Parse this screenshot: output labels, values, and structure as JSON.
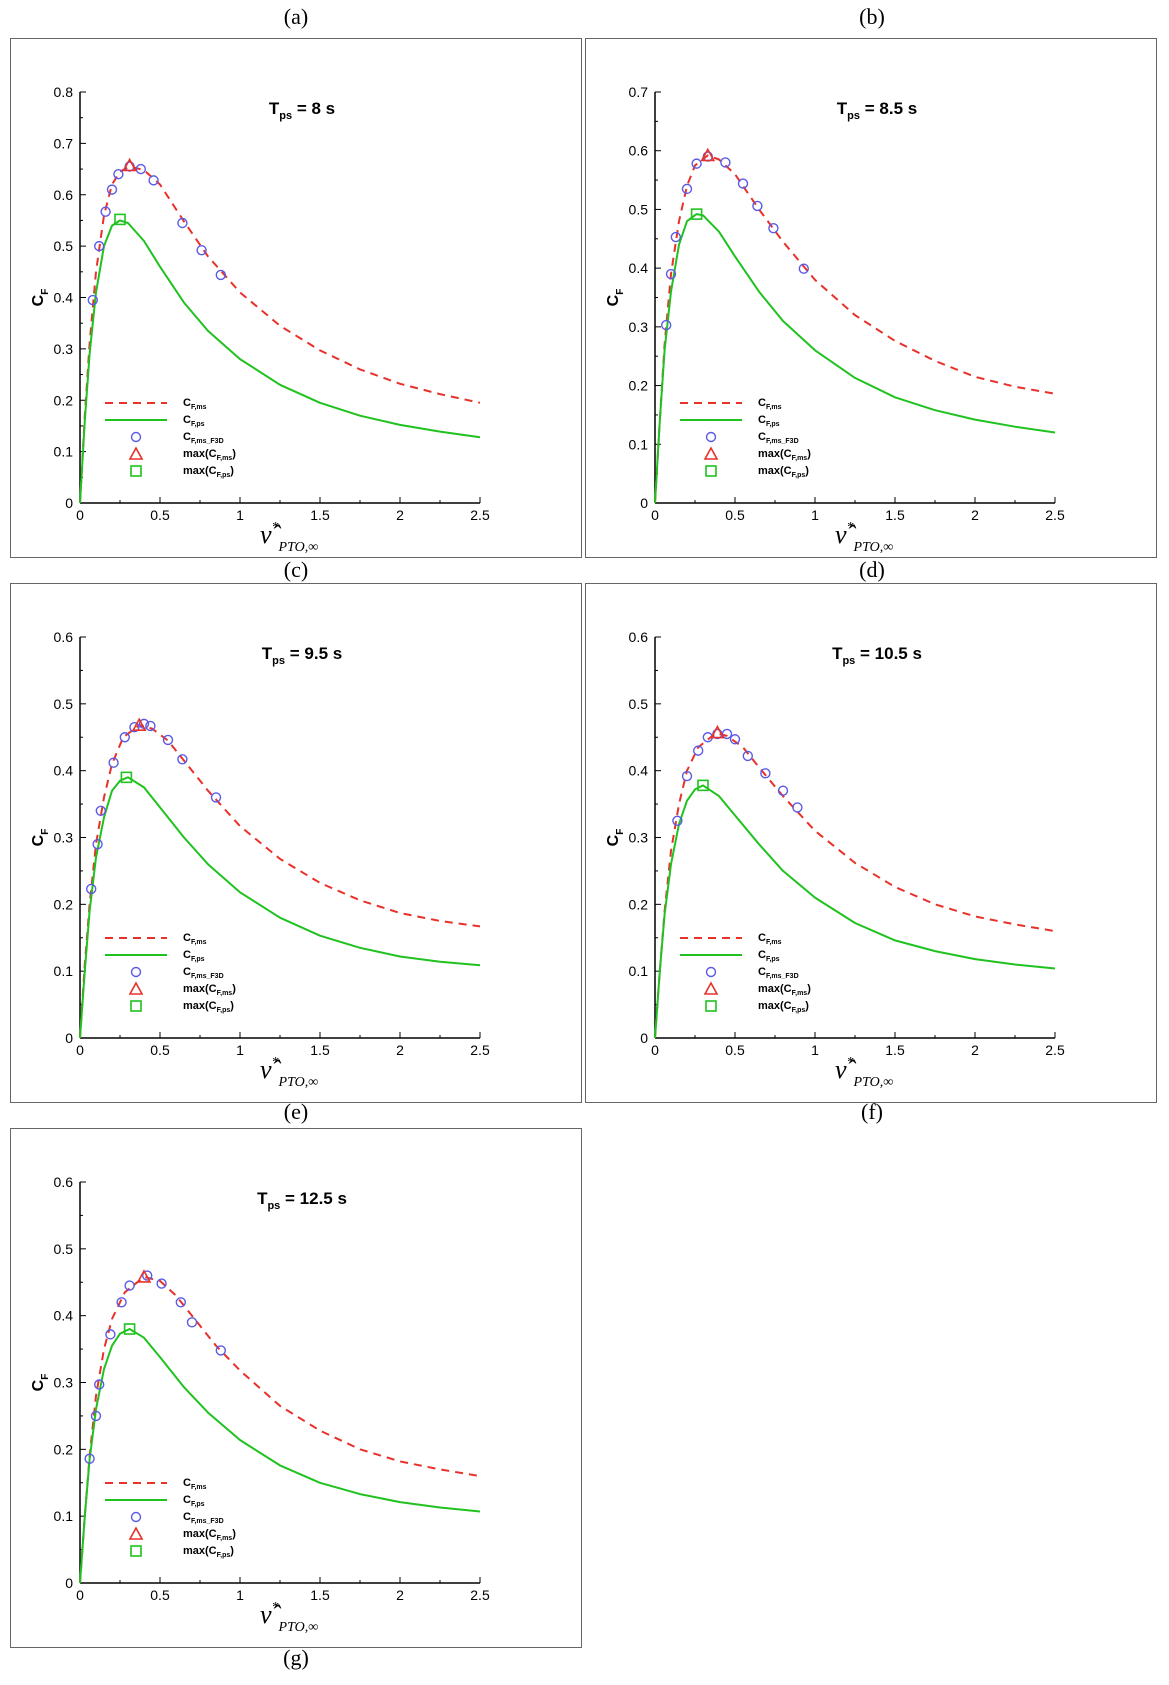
{
  "figure": {
    "panel_labels": [
      "(a)",
      "(b)",
      "(c)",
      "(d)",
      "(e)",
      "(f)",
      "(g)"
    ]
  },
  "legend": {
    "ms": {
      "base": "C",
      "sub": "F,ms"
    },
    "ps": {
      "base": "C",
      "sub": "F,ps"
    },
    "f3d": {
      "base": "C",
      "sub": "F,ms_F3D"
    },
    "max_ms": {
      "pre": "max(C",
      "sub": "F,ms",
      "post": ")"
    },
    "max_ps": {
      "pre": "max(C",
      "sub": "F,ps",
      "post": ")"
    }
  },
  "axes": {
    "xlabel": {
      "base": "ν̂",
      "sup": "*",
      "sub": "PTO,∞"
    },
    "ylabel": {
      "base": "C",
      "sub": "F"
    }
  },
  "colors": {
    "ms": "#e8312a",
    "ps": "#1fc21f",
    "f3d": "#5a5ae6",
    "axis": "#000000"
  },
  "chart_data": [
    {
      "type": "line",
      "title": {
        "base": "T",
        "sub": "ps",
        "value": "=  8 s"
      },
      "xlim": [
        0,
        2.5
      ],
      "ylim": [
        0,
        0.8
      ],
      "xticks": [
        0,
        0.5,
        1,
        1.5,
        2,
        2.5
      ],
      "yticks": [
        0,
        0.1,
        0.2,
        0.3,
        0.4,
        0.5,
        0.6,
        0.7,
        0.8
      ],
      "series": [
        {
          "key": "ms",
          "style": "dashed",
          "x": [
            0,
            0.03,
            0.06,
            0.1,
            0.15,
            0.2,
            0.25,
            0.31,
            0.4,
            0.5,
            0.65,
            0.8,
            1.0,
            1.25,
            1.5,
            1.75,
            2.0,
            2.25,
            2.5
          ],
          "y": [
            0,
            0.17,
            0.31,
            0.45,
            0.56,
            0.62,
            0.645,
            0.655,
            0.648,
            0.62,
            0.548,
            0.48,
            0.41,
            0.345,
            0.297,
            0.26,
            0.232,
            0.212,
            0.195
          ]
        },
        {
          "key": "ps",
          "style": "solid",
          "x": [
            0,
            0.03,
            0.06,
            0.1,
            0.15,
            0.2,
            0.25,
            0.3,
            0.4,
            0.5,
            0.65,
            0.8,
            1.0,
            1.25,
            1.5,
            1.75,
            2.0,
            2.25,
            2.5
          ],
          "y": [
            0,
            0.16,
            0.29,
            0.41,
            0.5,
            0.54,
            0.55,
            0.545,
            0.51,
            0.46,
            0.39,
            0.335,
            0.28,
            0.23,
            0.195,
            0.17,
            0.152,
            0.139,
            0.128
          ]
        },
        {
          "key": "f3d",
          "style": "circle",
          "x": [
            0.08,
            0.12,
            0.16,
            0.2,
            0.24,
            0.31,
            0.38,
            0.46,
            0.64,
            0.76,
            0.88
          ],
          "y": [
            0.395,
            0.5,
            0.567,
            0.61,
            0.64,
            0.655,
            0.65,
            0.628,
            0.545,
            0.492,
            0.444
          ]
        },
        {
          "key": "max_ms",
          "style": "triangle",
          "x": [
            0.31
          ],
          "y": [
            0.657
          ]
        },
        {
          "key": "max_ps",
          "style": "square",
          "x": [
            0.25
          ],
          "y": [
            0.552
          ]
        }
      ]
    },
    {
      "type": "line",
      "title": {
        "base": "T",
        "sub": "ps",
        "value": "=  8.5 s"
      },
      "xlim": [
        0,
        2.5
      ],
      "ylim": [
        0,
        0.7
      ],
      "xticks": [
        0,
        0.5,
        1,
        1.5,
        2,
        2.5
      ],
      "yticks": [
        0,
        0.1,
        0.2,
        0.3,
        0.4,
        0.5,
        0.6,
        0.7
      ],
      "series": [
        {
          "key": "ms",
          "style": "dashed",
          "x": [
            0,
            0.03,
            0.06,
            0.1,
            0.15,
            0.2,
            0.25,
            0.33,
            0.4,
            0.5,
            0.65,
            0.8,
            1.0,
            1.25,
            1.5,
            1.75,
            2.0,
            2.25,
            2.5
          ],
          "y": [
            0,
            0.14,
            0.27,
            0.39,
            0.48,
            0.54,
            0.575,
            0.592,
            0.585,
            0.56,
            0.5,
            0.445,
            0.38,
            0.32,
            0.276,
            0.242,
            0.215,
            0.198,
            0.186
          ]
        },
        {
          "key": "ps",
          "style": "solid",
          "x": [
            0,
            0.03,
            0.06,
            0.1,
            0.15,
            0.2,
            0.26,
            0.3,
            0.4,
            0.5,
            0.65,
            0.8,
            1.0,
            1.25,
            1.5,
            1.75,
            2.0,
            2.25,
            2.5
          ],
          "y": [
            0,
            0.14,
            0.26,
            0.36,
            0.44,
            0.48,
            0.492,
            0.49,
            0.462,
            0.42,
            0.36,
            0.31,
            0.26,
            0.213,
            0.18,
            0.158,
            0.142,
            0.13,
            0.12
          ]
        },
        {
          "key": "f3d",
          "style": "circle",
          "x": [
            0.07,
            0.1,
            0.13,
            0.2,
            0.26,
            0.33,
            0.44,
            0.55,
            0.64,
            0.74,
            0.93
          ],
          "y": [
            0.303,
            0.39,
            0.453,
            0.535,
            0.578,
            0.59,
            0.58,
            0.544,
            0.506,
            0.468,
            0.399
          ]
        },
        {
          "key": "max_ms",
          "style": "triangle",
          "x": [
            0.33
          ],
          "y": [
            0.592
          ]
        },
        {
          "key": "max_ps",
          "style": "square",
          "x": [
            0.26
          ],
          "y": [
            0.492
          ]
        }
      ]
    },
    {
      "type": "line",
      "title": {
        "base": "T",
        "sub": "ps",
        "value": "=  9.5 s"
      },
      "xlim": [
        0,
        2.5
      ],
      "ylim": [
        0,
        0.6
      ],
      "xticks": [
        0,
        0.5,
        1,
        1.5,
        2,
        2.5
      ],
      "yticks": [
        0,
        0.1,
        0.2,
        0.3,
        0.4,
        0.5,
        0.6
      ],
      "series": [
        {
          "key": "ms",
          "style": "dashed",
          "x": [
            0,
            0.03,
            0.06,
            0.1,
            0.15,
            0.2,
            0.27,
            0.37,
            0.45,
            0.55,
            0.65,
            0.8,
            1.0,
            1.25,
            1.5,
            1.75,
            2.0,
            2.25,
            2.5
          ],
          "y": [
            0,
            0.11,
            0.2,
            0.29,
            0.36,
            0.41,
            0.45,
            0.468,
            0.463,
            0.445,
            0.415,
            0.37,
            0.317,
            0.268,
            0.232,
            0.206,
            0.187,
            0.175,
            0.167
          ]
        },
        {
          "key": "ps",
          "style": "solid",
          "x": [
            0,
            0.03,
            0.06,
            0.1,
            0.15,
            0.2,
            0.25,
            0.3,
            0.4,
            0.5,
            0.65,
            0.8,
            1.0,
            1.25,
            1.5,
            1.75,
            2.0,
            2.25,
            2.5
          ],
          "y": [
            0,
            0.1,
            0.19,
            0.27,
            0.33,
            0.37,
            0.385,
            0.39,
            0.375,
            0.345,
            0.3,
            0.26,
            0.218,
            0.18,
            0.153,
            0.135,
            0.122,
            0.114,
            0.109
          ]
        },
        {
          "key": "f3d",
          "style": "circle",
          "x": [
            0.07,
            0.11,
            0.13,
            0.21,
            0.28,
            0.34,
            0.4,
            0.44,
            0.55,
            0.64,
            0.85
          ],
          "y": [
            0.223,
            0.29,
            0.34,
            0.412,
            0.45,
            0.465,
            0.47,
            0.467,
            0.446,
            0.417,
            0.36
          ]
        },
        {
          "key": "max_ms",
          "style": "triangle",
          "x": [
            0.37
          ],
          "y": [
            0.468
          ]
        },
        {
          "key": "max_ps",
          "style": "square",
          "x": [
            0.29
          ],
          "y": [
            0.39
          ]
        }
      ]
    },
    {
      "type": "line",
      "title": {
        "base": "T",
        "sub": "ps",
        "value": "=  10.5 s"
      },
      "xlim": [
        0,
        2.5
      ],
      "ylim": [
        0,
        0.6
      ],
      "xticks": [
        0,
        0.5,
        1,
        1.5,
        2,
        2.5
      ],
      "yticks": [
        0,
        0.1,
        0.2,
        0.3,
        0.4,
        0.5,
        0.6
      ],
      "series": [
        {
          "key": "ms",
          "style": "dashed",
          "x": [
            0,
            0.03,
            0.06,
            0.1,
            0.15,
            0.2,
            0.27,
            0.38,
            0.45,
            0.55,
            0.65,
            0.8,
            1.0,
            1.25,
            1.5,
            1.75,
            2.0,
            2.25,
            2.5
          ],
          "y": [
            0,
            0.1,
            0.19,
            0.28,
            0.35,
            0.4,
            0.435,
            0.456,
            0.452,
            0.435,
            0.405,
            0.362,
            0.31,
            0.262,
            0.226,
            0.2,
            0.182,
            0.17,
            0.16
          ]
        },
        {
          "key": "ps",
          "style": "solid",
          "x": [
            0,
            0.03,
            0.06,
            0.1,
            0.15,
            0.2,
            0.25,
            0.3,
            0.4,
            0.5,
            0.65,
            0.8,
            1.0,
            1.25,
            1.5,
            1.75,
            2.0,
            2.25,
            2.5
          ],
          "y": [
            0,
            0.1,
            0.185,
            0.26,
            0.32,
            0.355,
            0.372,
            0.378,
            0.362,
            0.333,
            0.29,
            0.25,
            0.21,
            0.172,
            0.146,
            0.13,
            0.118,
            0.11,
            0.104
          ]
        },
        {
          "key": "f3d",
          "style": "circle",
          "x": [
            0.14,
            0.2,
            0.27,
            0.33,
            0.39,
            0.45,
            0.5,
            0.58,
            0.69,
            0.8,
            0.89
          ],
          "y": [
            0.325,
            0.392,
            0.43,
            0.45,
            0.455,
            0.455,
            0.447,
            0.422,
            0.396,
            0.37,
            0.345
          ]
        },
        {
          "key": "max_ms",
          "style": "triangle",
          "x": [
            0.39
          ],
          "y": [
            0.457
          ]
        },
        {
          "key": "max_ps",
          "style": "square",
          "x": [
            0.3
          ],
          "y": [
            0.378
          ]
        }
      ]
    },
    {
      "type": "line",
      "title": {
        "base": "T",
        "sub": "ps",
        "value": "=  12.5 s"
      },
      "xlim": [
        0,
        2.5
      ],
      "ylim": [
        0,
        0.6
      ],
      "xticks": [
        0,
        0.5,
        1,
        1.5,
        2,
        2.5
      ],
      "yticks": [
        0,
        0.1,
        0.2,
        0.3,
        0.4,
        0.5,
        0.6
      ],
      "series": [
        {
          "key": "ms",
          "style": "dashed",
          "x": [
            0,
            0.03,
            0.06,
            0.1,
            0.15,
            0.2,
            0.28,
            0.4,
            0.5,
            0.6,
            0.7,
            0.85,
            1.0,
            1.25,
            1.5,
            1.75,
            2.0,
            2.25,
            2.5
          ],
          "y": [
            0,
            0.1,
            0.19,
            0.28,
            0.35,
            0.395,
            0.435,
            0.458,
            0.452,
            0.43,
            0.4,
            0.355,
            0.318,
            0.265,
            0.228,
            0.2,
            0.182,
            0.17,
            0.16
          ]
        },
        {
          "key": "ps",
          "style": "solid",
          "x": [
            0,
            0.03,
            0.06,
            0.1,
            0.15,
            0.2,
            0.25,
            0.31,
            0.4,
            0.5,
            0.65,
            0.8,
            1.0,
            1.25,
            1.5,
            1.75,
            2.0,
            2.25,
            2.5
          ],
          "y": [
            0,
            0.1,
            0.185,
            0.26,
            0.32,
            0.355,
            0.373,
            0.38,
            0.367,
            0.338,
            0.293,
            0.255,
            0.214,
            0.176,
            0.15,
            0.133,
            0.121,
            0.113,
            0.107
          ]
        },
        {
          "key": "f3d",
          "style": "circle",
          "x": [
            0.06,
            0.1,
            0.12,
            0.19,
            0.26,
            0.31,
            0.42,
            0.51,
            0.63,
            0.7,
            0.88
          ],
          "y": [
            0.186,
            0.25,
            0.297,
            0.372,
            0.42,
            0.445,
            0.46,
            0.448,
            0.42,
            0.39,
            0.348
          ]
        },
        {
          "key": "max_ms",
          "style": "triangle",
          "x": [
            0.4
          ],
          "y": [
            0.458
          ]
        },
        {
          "key": "max_ps",
          "style": "square",
          "x": [
            0.31
          ],
          "y": [
            0.38
          ]
        }
      ]
    }
  ]
}
